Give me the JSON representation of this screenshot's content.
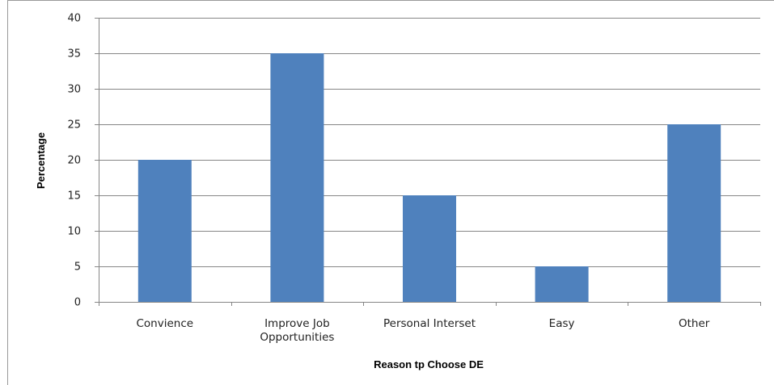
{
  "chart_data": {
    "type": "bar",
    "categories": [
      "Convience",
      "Improve Job Opportunities",
      "Personal Interset",
      "Easy",
      "Other"
    ],
    "category_lines": [
      [
        "Convience"
      ],
      [
        "Improve Job",
        "Opportunities"
      ],
      [
        "Personal Interset"
      ],
      [
        "Easy"
      ],
      [
        "Other"
      ]
    ],
    "values": [
      20,
      35,
      15,
      5,
      25
    ],
    "xlabel": "Reason tp Choose DE",
    "ylabel": "Percentage",
    "ylim": [
      0,
      40
    ],
    "yticks": [
      "0",
      "5",
      "10",
      "15",
      "20",
      "25",
      "30",
      "35",
      "40"
    ],
    "grid": true,
    "legend": "none",
    "bar_color": "#4f81bd"
  }
}
